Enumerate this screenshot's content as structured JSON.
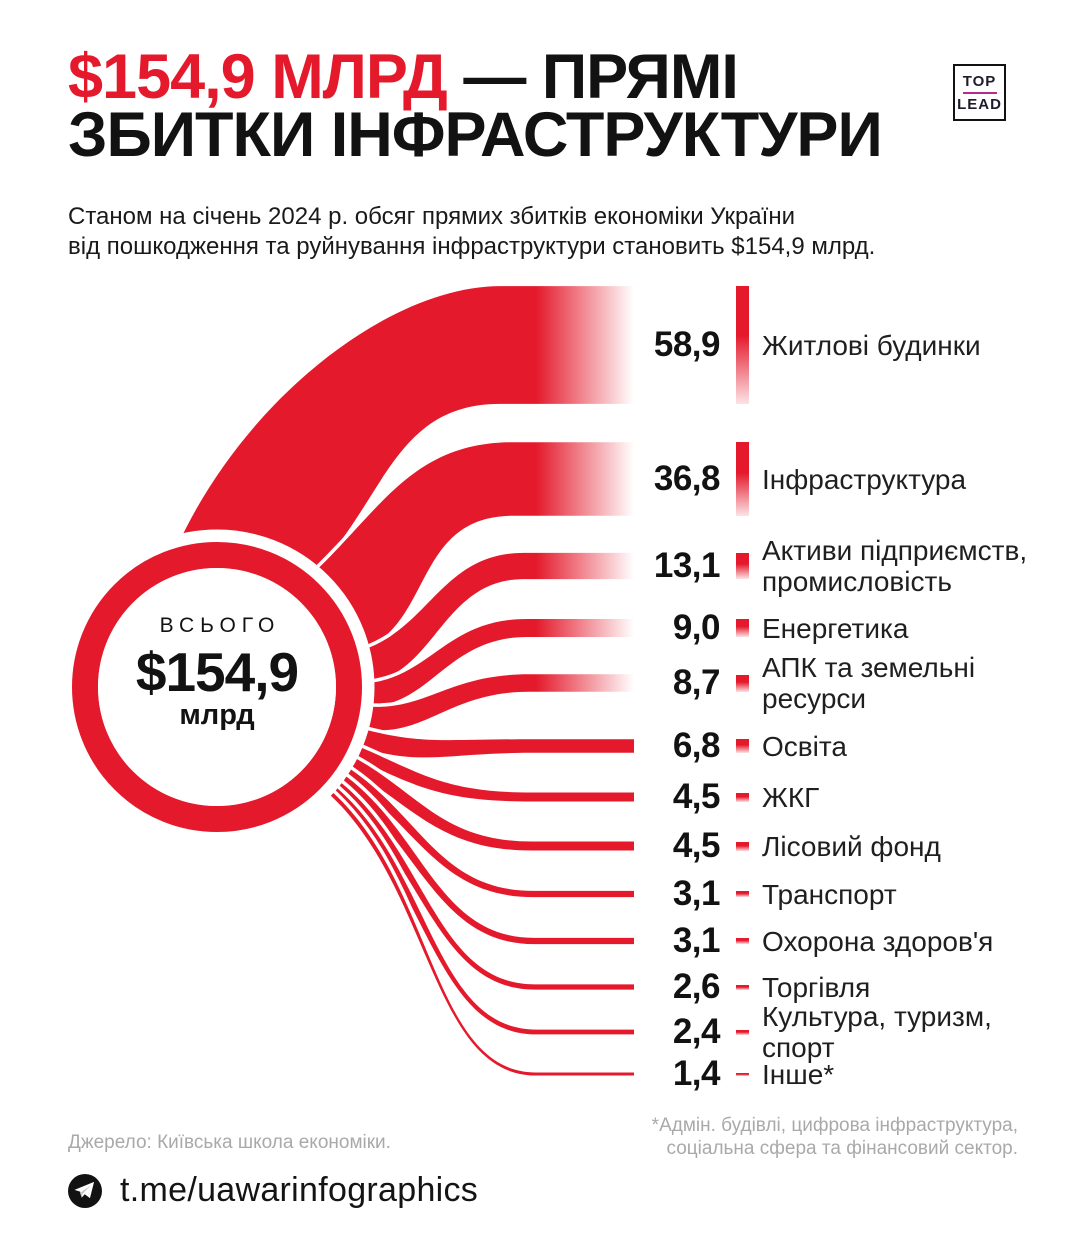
{
  "colors": {
    "accent_red": "#e41a2c",
    "logo_line_magenta": "#b72b8a",
    "note_gray": "#a9a9a9",
    "ink": "#121212"
  },
  "header": {
    "title_red": "$154,9 МЛРД",
    "title_rest": " — ПРЯМІ",
    "title_line2": "ЗБИТКИ ІНФРАСТРУКТУРИ",
    "subtitle_line1": "Станом на січень 2024 р. обсяг прямих збитків економіки України",
    "subtitle_line2": "від пошкодження та руйнування інфраструктури становить $154,9 млрд.",
    "logo_top": "TOP",
    "logo_bottom": "LEAD"
  },
  "chart_data": {
    "type": "sankey-fan",
    "title": "$154,9 млрд — прямі збитки інфраструктури",
    "unit": "$ млрд",
    "total": {
      "label": "ВСЬОГО",
      "value_text": "$154,9",
      "unit": "млрд",
      "value": 154.9
    },
    "categories": [
      "Житлові будинки",
      "Інфраструктура",
      "Активи підприємств, промисловість",
      "Енергетика",
      "АПК та земельні ресурси",
      "Освіта",
      "ЖКГ",
      "Лісовий фонд",
      "Транспорт",
      "Охорона здоров'я",
      "Торгівля",
      "Культура, туризм, спорт",
      "Інше*"
    ],
    "values": [
      58.9,
      36.8,
      13.1,
      9.0,
      8.7,
      6.8,
      4.5,
      4.5,
      3.1,
      3.1,
      2.6,
      2.4,
      1.4
    ],
    "rows": [
      {
        "value": 58.9,
        "value_text": "58,9",
        "label": "Житлові будинки"
      },
      {
        "value": 36.8,
        "value_text": "36,8",
        "label": "Інфраструктура"
      },
      {
        "value": 13.1,
        "value_text": "13,1",
        "label": "Активи підприємств,\nпромисловість"
      },
      {
        "value": 9.0,
        "value_text": "9,0",
        "label": "Енергетика"
      },
      {
        "value": 8.7,
        "value_text": "8,7",
        "label": "АПК та земельні\nресурси"
      },
      {
        "value": 6.8,
        "value_text": "6,8",
        "label": "Освіта"
      },
      {
        "value": 4.5,
        "value_text": "4,5",
        "label": "ЖКГ"
      },
      {
        "value": 4.5,
        "value_text": "4,5",
        "label": "Лісовий фонд"
      },
      {
        "value": 3.1,
        "value_text": "3,1",
        "label": "Транспорт"
      },
      {
        "value": 3.1,
        "value_text": "3,1",
        "label": "Охорона здоров'я"
      },
      {
        "value": 2.6,
        "value_text": "2,6",
        "label": "Торгівля"
      },
      {
        "value": 2.4,
        "value_text": "2,4",
        "label": "Культура, туризм,\nспорт"
      },
      {
        "value": 1.4,
        "value_text": "1,4",
        "label": "Інше*"
      }
    ]
  },
  "footer": {
    "source": "Джерело: Київська школа економіки.",
    "footnote_line1": "*Адмін. будівлі, цифрова інфраструктура,",
    "footnote_line2": "соціальна сфера та фінансовий сектор.",
    "telegram_handle": "t.me/uawarinfographics"
  }
}
